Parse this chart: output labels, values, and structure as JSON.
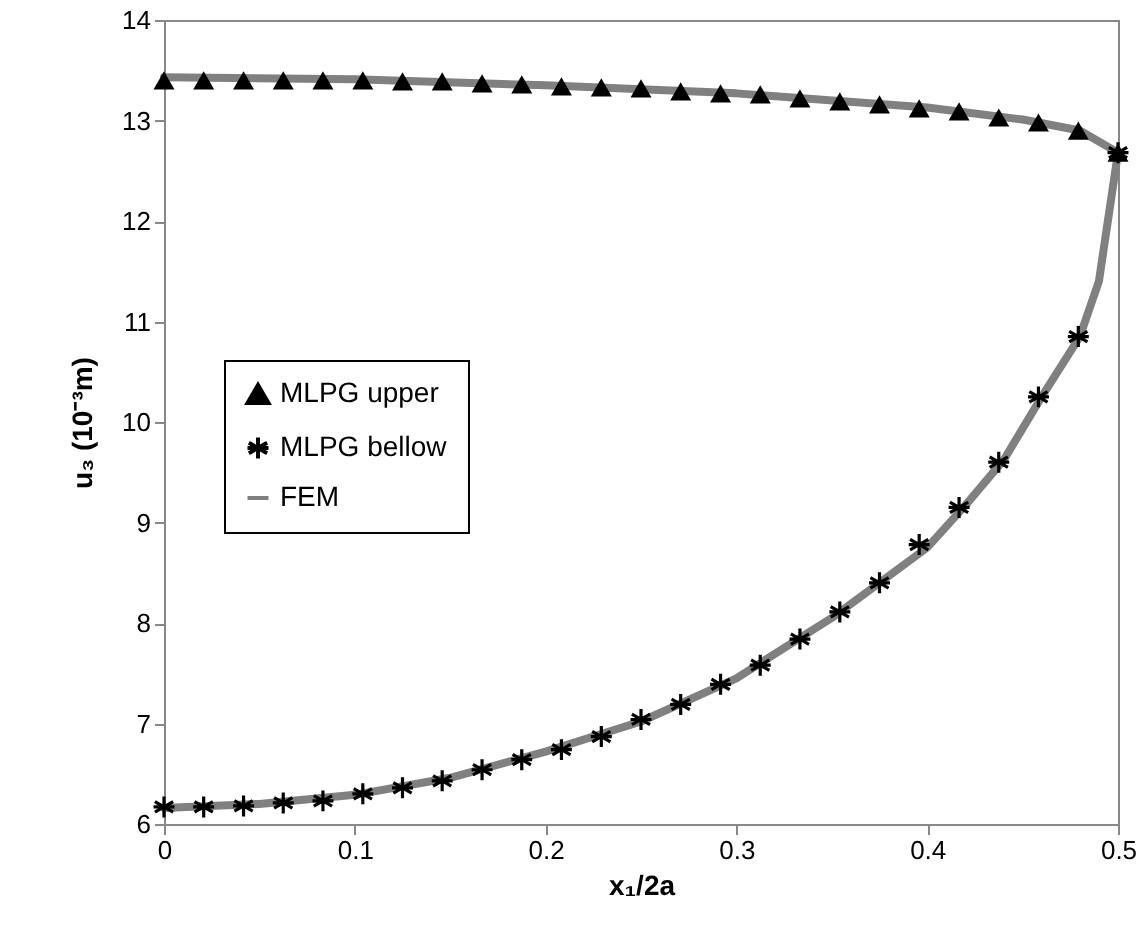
{
  "chart_data": {
    "type": "scatter",
    "xlabel": "x₁/2a",
    "ylabel": "u₃ (10⁻³m)",
    "xlim": [
      0,
      0.5
    ],
    "ylim": [
      6,
      14
    ],
    "xticks": [
      0,
      0.1,
      0.2,
      0.3,
      0.4,
      0.5
    ],
    "yticks": [
      6,
      7,
      8,
      9,
      10,
      11,
      12,
      13,
      14
    ],
    "grid": false,
    "legend": "left",
    "x": [
      0,
      0.0208,
      0.0417,
      0.0625,
      0.0833,
      0.1042,
      0.125,
      0.1458,
      0.1667,
      0.1875,
      0.2083,
      0.2292,
      0.25,
      0.2708,
      0.2917,
      0.3125,
      0.3333,
      0.3542,
      0.375,
      0.3958,
      0.4167,
      0.4375,
      0.4583,
      0.4792,
      0.5
    ],
    "series": [
      {
        "name": "MLPG upper",
        "color": "#000000",
        "marker": "triangle",
        "values": [
          13.4,
          13.4,
          13.4,
          13.4,
          13.4,
          13.4,
          13.39,
          13.39,
          13.37,
          13.36,
          13.34,
          13.33,
          13.32,
          13.29,
          13.27,
          13.26,
          13.22,
          13.19,
          13.16,
          13.12,
          13.09,
          13.03,
          12.98,
          12.9,
          12.68
        ]
      },
      {
        "name": "MLPG bellow",
        "color": "#000000",
        "marker": "cross",
        "values": [
          6.17,
          6.17,
          6.18,
          6.21,
          6.23,
          6.3,
          6.36,
          6.43,
          6.54,
          6.64,
          6.74,
          6.87,
          7.04,
          7.19,
          7.39,
          7.58,
          7.84,
          8.11,
          8.4,
          8.78,
          9.15,
          9.6,
          10.25,
          10.85,
          12.68
        ]
      },
      {
        "name": "FEM",
        "color": "#808080",
        "type": "line",
        "marker": "none",
        "x": [
          0,
          0.1,
          0.2,
          0.3,
          0.4,
          0.45,
          0.48,
          0.5,
          0.49,
          0.48,
          0.46,
          0.44,
          0.42,
          0.4,
          0.35,
          0.3,
          0.25,
          0.2,
          0.15,
          0.1,
          0.05,
          0
        ],
        "values": [
          13.43,
          13.41,
          13.35,
          13.27,
          13.13,
          13.01,
          12.9,
          12.68,
          11.4,
          10.85,
          10.25,
          9.62,
          9.17,
          8.75,
          8.05,
          7.45,
          7.02,
          6.72,
          6.46,
          6.29,
          6.2,
          6.16
        ]
      }
    ]
  }
}
